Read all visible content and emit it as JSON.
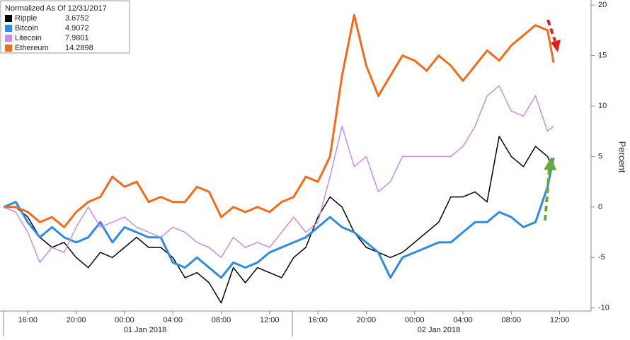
{
  "chart_data": {
    "type": "line",
    "legend_title": "Normalized As Of 12/31/2017",
    "y_label": "Percent",
    "day_labels": [
      "01 Jan 2018",
      "02 Jan 2018"
    ],
    "x": [
      14,
      15,
      16,
      17,
      18,
      19,
      20,
      21,
      22,
      23,
      24,
      25,
      26,
      27,
      28,
      29,
      30,
      31,
      32,
      33,
      34,
      35,
      36,
      37,
      38,
      39,
      40,
      41,
      42,
      43,
      44,
      45,
      46,
      47,
      48,
      49,
      50,
      51,
      52,
      53,
      54,
      55,
      56,
      57,
      58,
      59,
      59.5
    ],
    "xlim": [
      13.7,
      62.6
    ],
    "xticks": [
      {
        "value": 16,
        "label": "16:00"
      },
      {
        "value": 20,
        "label": "20:00"
      },
      {
        "value": 24,
        "label": "00:00"
      },
      {
        "value": 28,
        "label": "04:00"
      },
      {
        "value": 32,
        "label": "08:00"
      },
      {
        "value": 36,
        "label": "12:00"
      },
      {
        "value": 40,
        "label": "16:00"
      },
      {
        "value": 44,
        "label": "20:00"
      },
      {
        "value": 48,
        "label": "00:00"
      },
      {
        "value": 52,
        "label": "04:00"
      },
      {
        "value": 56,
        "label": "08:00"
      },
      {
        "value": 60,
        "label": "12:00"
      }
    ],
    "ylim": [
      -10.3,
      20.5
    ],
    "yticks": [
      20,
      15,
      10,
      5,
      0,
      -5,
      -10
    ],
    "series": [
      {
        "name": "Ripple",
        "legend_value": 3.6752,
        "color": "#000000",
        "values": [
          0,
          0,
          -1,
          -3,
          -4,
          -3.5,
          -5,
          -6,
          -4.5,
          -5,
          -4,
          -3,
          -4,
          -4,
          -5,
          -7,
          -6.5,
          -7.5,
          -9.5,
          -6,
          -7.5,
          -6,
          -6.5,
          -7,
          -5,
          -4,
          -1,
          1,
          0,
          -2.5,
          -4,
          -4.5,
          -5,
          -4.5,
          -3.5,
          -2.5,
          -1.5,
          1,
          1,
          1.5,
          0.5,
          7,
          5,
          4,
          6,
          5,
          3.7
        ]
      },
      {
        "name": "Bitcoin",
        "legend_value": 4.9072,
        "color": "#2f8be0",
        "values": [
          0,
          0.5,
          -1.5,
          -3,
          -2,
          -3,
          -3.5,
          -3,
          -1.5,
          -3.5,
          -2,
          -2.5,
          -3,
          -3,
          -5.5,
          -6,
          -5,
          -6,
          -7,
          -5.5,
          -6,
          -5.5,
          -4.5,
          -4,
          -3.5,
          -3,
          -2,
          -1,
          -2,
          -2.5,
          -3.5,
          -4.5,
          -7,
          -5,
          -4.5,
          -4,
          -3.5,
          -3.5,
          -2.5,
          -1.5,
          -1.5,
          -0.5,
          -1,
          -2,
          -1.5,
          2,
          4.9
        ]
      },
      {
        "name": "Litecoin",
        "legend_value": 7.9801,
        "color": "#c98ce8",
        "values": [
          0,
          -0.5,
          -2.5,
          -5.5,
          -4,
          -4.5,
          -2,
          0,
          -2,
          -1.5,
          -1,
          -2,
          -2.5,
          -3,
          -2,
          -2.5,
          -3.5,
          -4,
          -5,
          -3,
          -4,
          -3.5,
          -4,
          -2.5,
          -1,
          -2.5,
          -1.5,
          3,
          8,
          4,
          5,
          1.5,
          2.5,
          5,
          5,
          5,
          5,
          5,
          6,
          8,
          11,
          12,
          9.5,
          9,
          11,
          7.5,
          8
        ]
      },
      {
        "name": "Ethereum",
        "legend_value": 14.2898,
        "color": "#f26b1d",
        "values": [
          0,
          0,
          -0.5,
          -1.5,
          -1,
          -2,
          -0.5,
          0.5,
          1,
          3,
          2,
          2.5,
          0.5,
          1,
          0.5,
          0.5,
          2,
          1.5,
          -1,
          0,
          -0.5,
          0,
          -0.5,
          0.5,
          1,
          3,
          2.5,
          5,
          13,
          19,
          14,
          11,
          13,
          15,
          14.5,
          13.5,
          15,
          14,
          12.5,
          14,
          15.5,
          14.5,
          16,
          17,
          18,
          17.5,
          14.3
        ]
      }
    ]
  }
}
